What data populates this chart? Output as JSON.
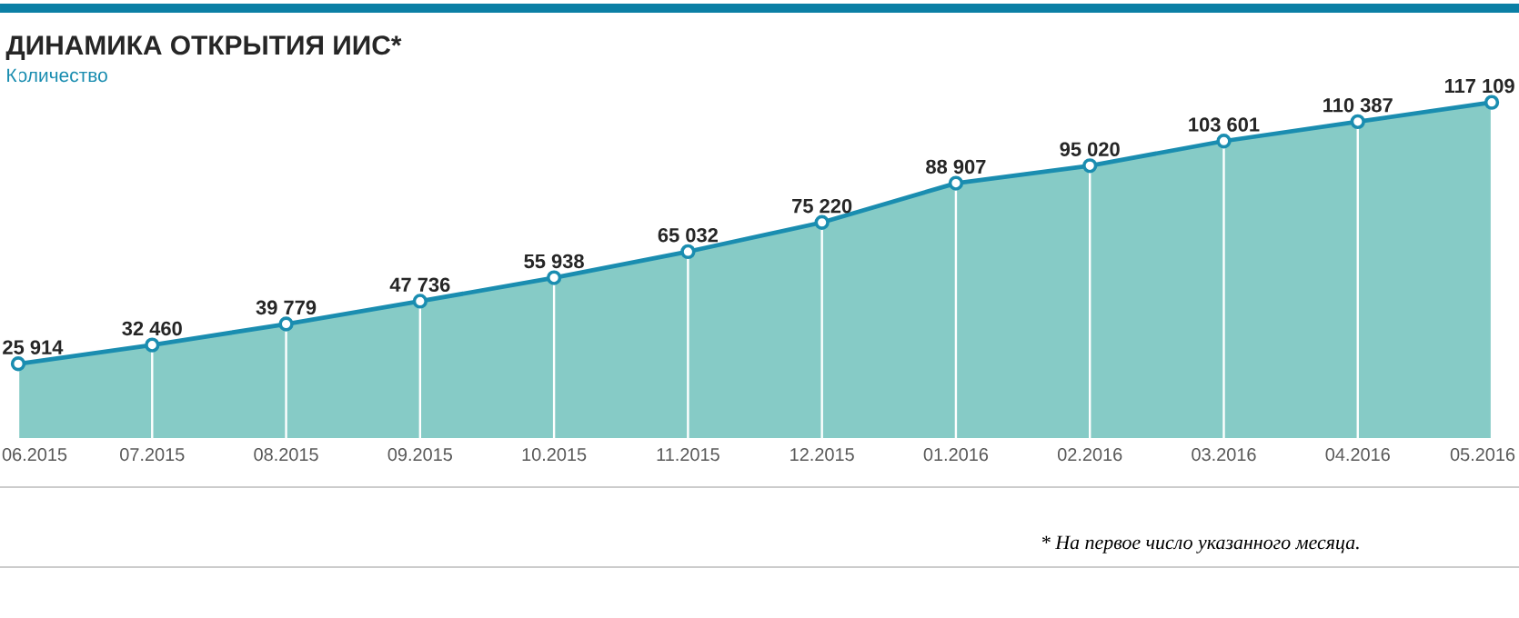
{
  "chart_data": {
    "type": "area",
    "title": "ДИНАМИКА ОТКРЫТИЯ ИИС*",
    "subtitle": "Количество",
    "categories": [
      "06.2015",
      "07.2015",
      "08.2015",
      "09.2015",
      "10.2015",
      "11.2015",
      "12.2015",
      "01.2016",
      "02.2016",
      "03.2016",
      "04.2016",
      "05.2016"
    ],
    "values": [
      25914,
      32460,
      39779,
      47736,
      55938,
      65032,
      75220,
      88907,
      95020,
      103601,
      110387,
      117109
    ],
    "value_labels": [
      "25 914",
      "32 460",
      "39 779",
      "47 736",
      "55 938",
      "65 032",
      "75 220",
      "88 907",
      "95 020",
      "103 601",
      "110 387",
      "117 109"
    ],
    "color": "#86cbc6",
    "ylim": [
      0,
      130000
    ],
    "grid": "x",
    "marker": "circle",
    "tick_labels": "x",
    "annotations": [
      "* На первое число указанного месяца."
    ]
  }
}
